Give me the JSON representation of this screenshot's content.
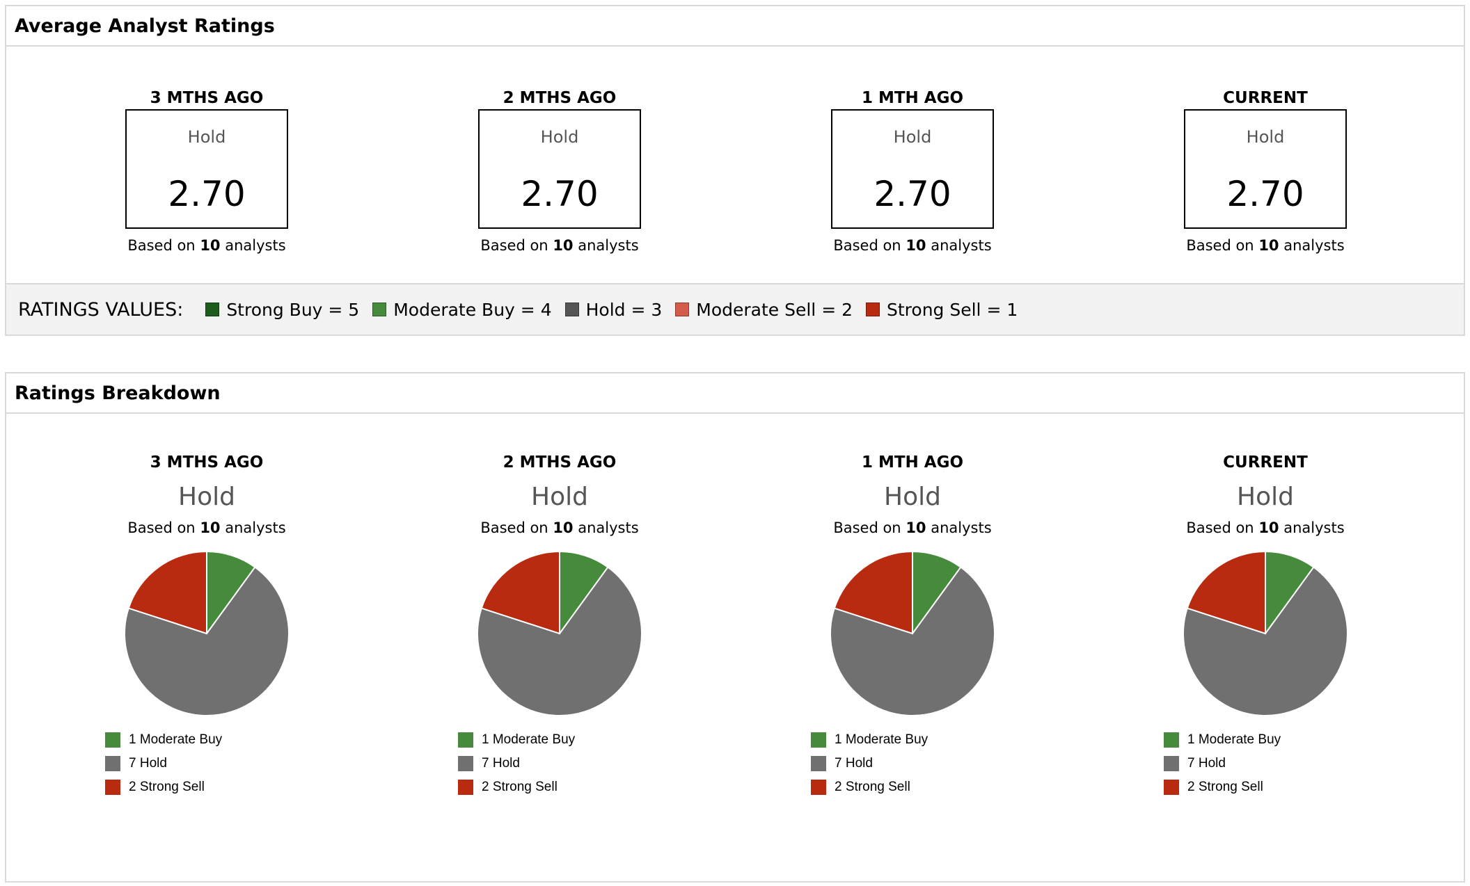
{
  "avg_panel": {
    "title": "Average Analyst Ratings",
    "periods": [
      {
        "period": "3 MTHS AGO",
        "label": "Hold",
        "score": "2.70",
        "based_prefix": "Based on",
        "count": "10",
        "based_suffix": "analysts"
      },
      {
        "period": "2 MTHS AGO",
        "label": "Hold",
        "score": "2.70",
        "based_prefix": "Based on",
        "count": "10",
        "based_suffix": "analysts"
      },
      {
        "period": "1 MTH AGO",
        "label": "Hold",
        "score": "2.70",
        "based_prefix": "Based on",
        "count": "10",
        "based_suffix": "analysts"
      },
      {
        "period": "CURRENT",
        "label": "Hold",
        "score": "2.70",
        "based_prefix": "Based on",
        "count": "10",
        "based_suffix": "analysts"
      }
    ],
    "values_title": "RATINGS VALUES:",
    "values": [
      {
        "text": "Strong Buy = 5",
        "color": "#1e5c1e"
      },
      {
        "text": "Moderate Buy = 4",
        "color": "#468a3c"
      },
      {
        "text": "Hold = 3",
        "color": "#555555"
      },
      {
        "text": "Moderate Sell = 2",
        "color": "#d45a4a"
      },
      {
        "text": "Strong Sell = 1",
        "color": "#b82b10"
      }
    ]
  },
  "breakdown_panel": {
    "title": "Ratings Breakdown"
  },
  "chart_data": [
    {
      "type": "pie",
      "title": "3 MTHS AGO",
      "subtitle": "Hold",
      "based_prefix": "Based on",
      "count": "10",
      "based_suffix": "analysts",
      "slices": [
        {
          "label": "1 Moderate Buy",
          "value": 1,
          "color": "#468a3c"
        },
        {
          "label": "7 Hold",
          "value": 7,
          "color": "#707070"
        },
        {
          "label": "2 Strong Sell",
          "value": 2,
          "color": "#b82b10"
        }
      ]
    },
    {
      "type": "pie",
      "title": "2 MTHS AGO",
      "subtitle": "Hold",
      "based_prefix": "Based on",
      "count": "10",
      "based_suffix": "analysts",
      "slices": [
        {
          "label": "1 Moderate Buy",
          "value": 1,
          "color": "#468a3c"
        },
        {
          "label": "7 Hold",
          "value": 7,
          "color": "#707070"
        },
        {
          "label": "2 Strong Sell",
          "value": 2,
          "color": "#b82b10"
        }
      ]
    },
    {
      "type": "pie",
      "title": "1 MTH AGO",
      "subtitle": "Hold",
      "based_prefix": "Based on",
      "count": "10",
      "based_suffix": "analysts",
      "slices": [
        {
          "label": "1 Moderate Buy",
          "value": 1,
          "color": "#468a3c"
        },
        {
          "label": "7 Hold",
          "value": 7,
          "color": "#707070"
        },
        {
          "label": "2 Strong Sell",
          "value": 2,
          "color": "#b82b10"
        }
      ]
    },
    {
      "type": "pie",
      "title": "CURRENT",
      "subtitle": "Hold",
      "based_prefix": "Based on",
      "count": "10",
      "based_suffix": "analysts",
      "slices": [
        {
          "label": "1 Moderate Buy",
          "value": 1,
          "color": "#468a3c"
        },
        {
          "label": "7 Hold",
          "value": 7,
          "color": "#707070"
        },
        {
          "label": "2 Strong Sell",
          "value": 2,
          "color": "#b82b10"
        }
      ]
    }
  ]
}
